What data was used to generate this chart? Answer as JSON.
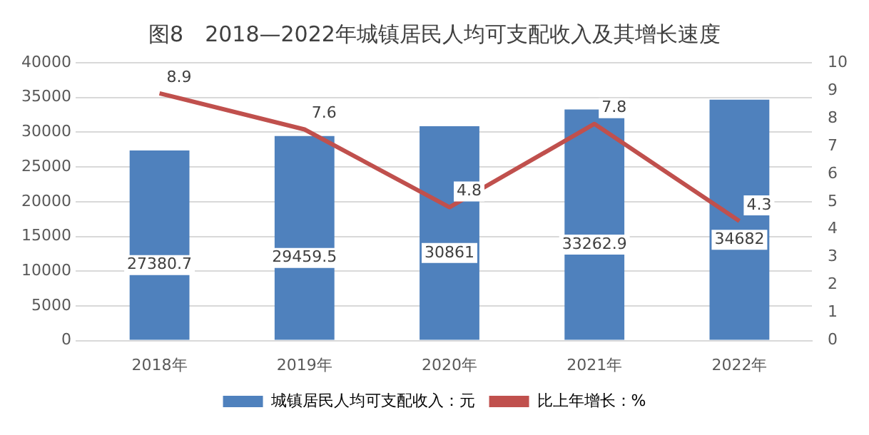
{
  "chart_data": {
    "type": "bar",
    "title": "图8　2018—2022年城镇居民人均可支配收入及其增长速度",
    "categories": [
      "2018年",
      "2019年",
      "2020年",
      "2021年",
      "2022年"
    ],
    "series": [
      {
        "name": "城镇居民人均可支配收入：元",
        "color": "#4f81bd",
        "values": [
          27380.7,
          29459.5,
          30861,
          33262.9,
          34682
        ]
      },
      {
        "name": "比上年增长：%",
        "type": "line",
        "axis": "y2",
        "color": "#c0504d",
        "values": [
          8.9,
          7.6,
          4.8,
          7.8,
          4.3
        ]
      }
    ],
    "ylim": [
      0,
      40000
    ],
    "yticks": [
      0,
      5000,
      10000,
      15000,
      20000,
      25000,
      30000,
      35000,
      40000
    ],
    "y2lim": [
      0,
      10
    ],
    "y2ticks": [
      0,
      1,
      2,
      3,
      4,
      5,
      6,
      7,
      8,
      9,
      10
    ],
    "grid": "y",
    "legend": "bottom",
    "data_labels": true,
    "marker": "none"
  }
}
